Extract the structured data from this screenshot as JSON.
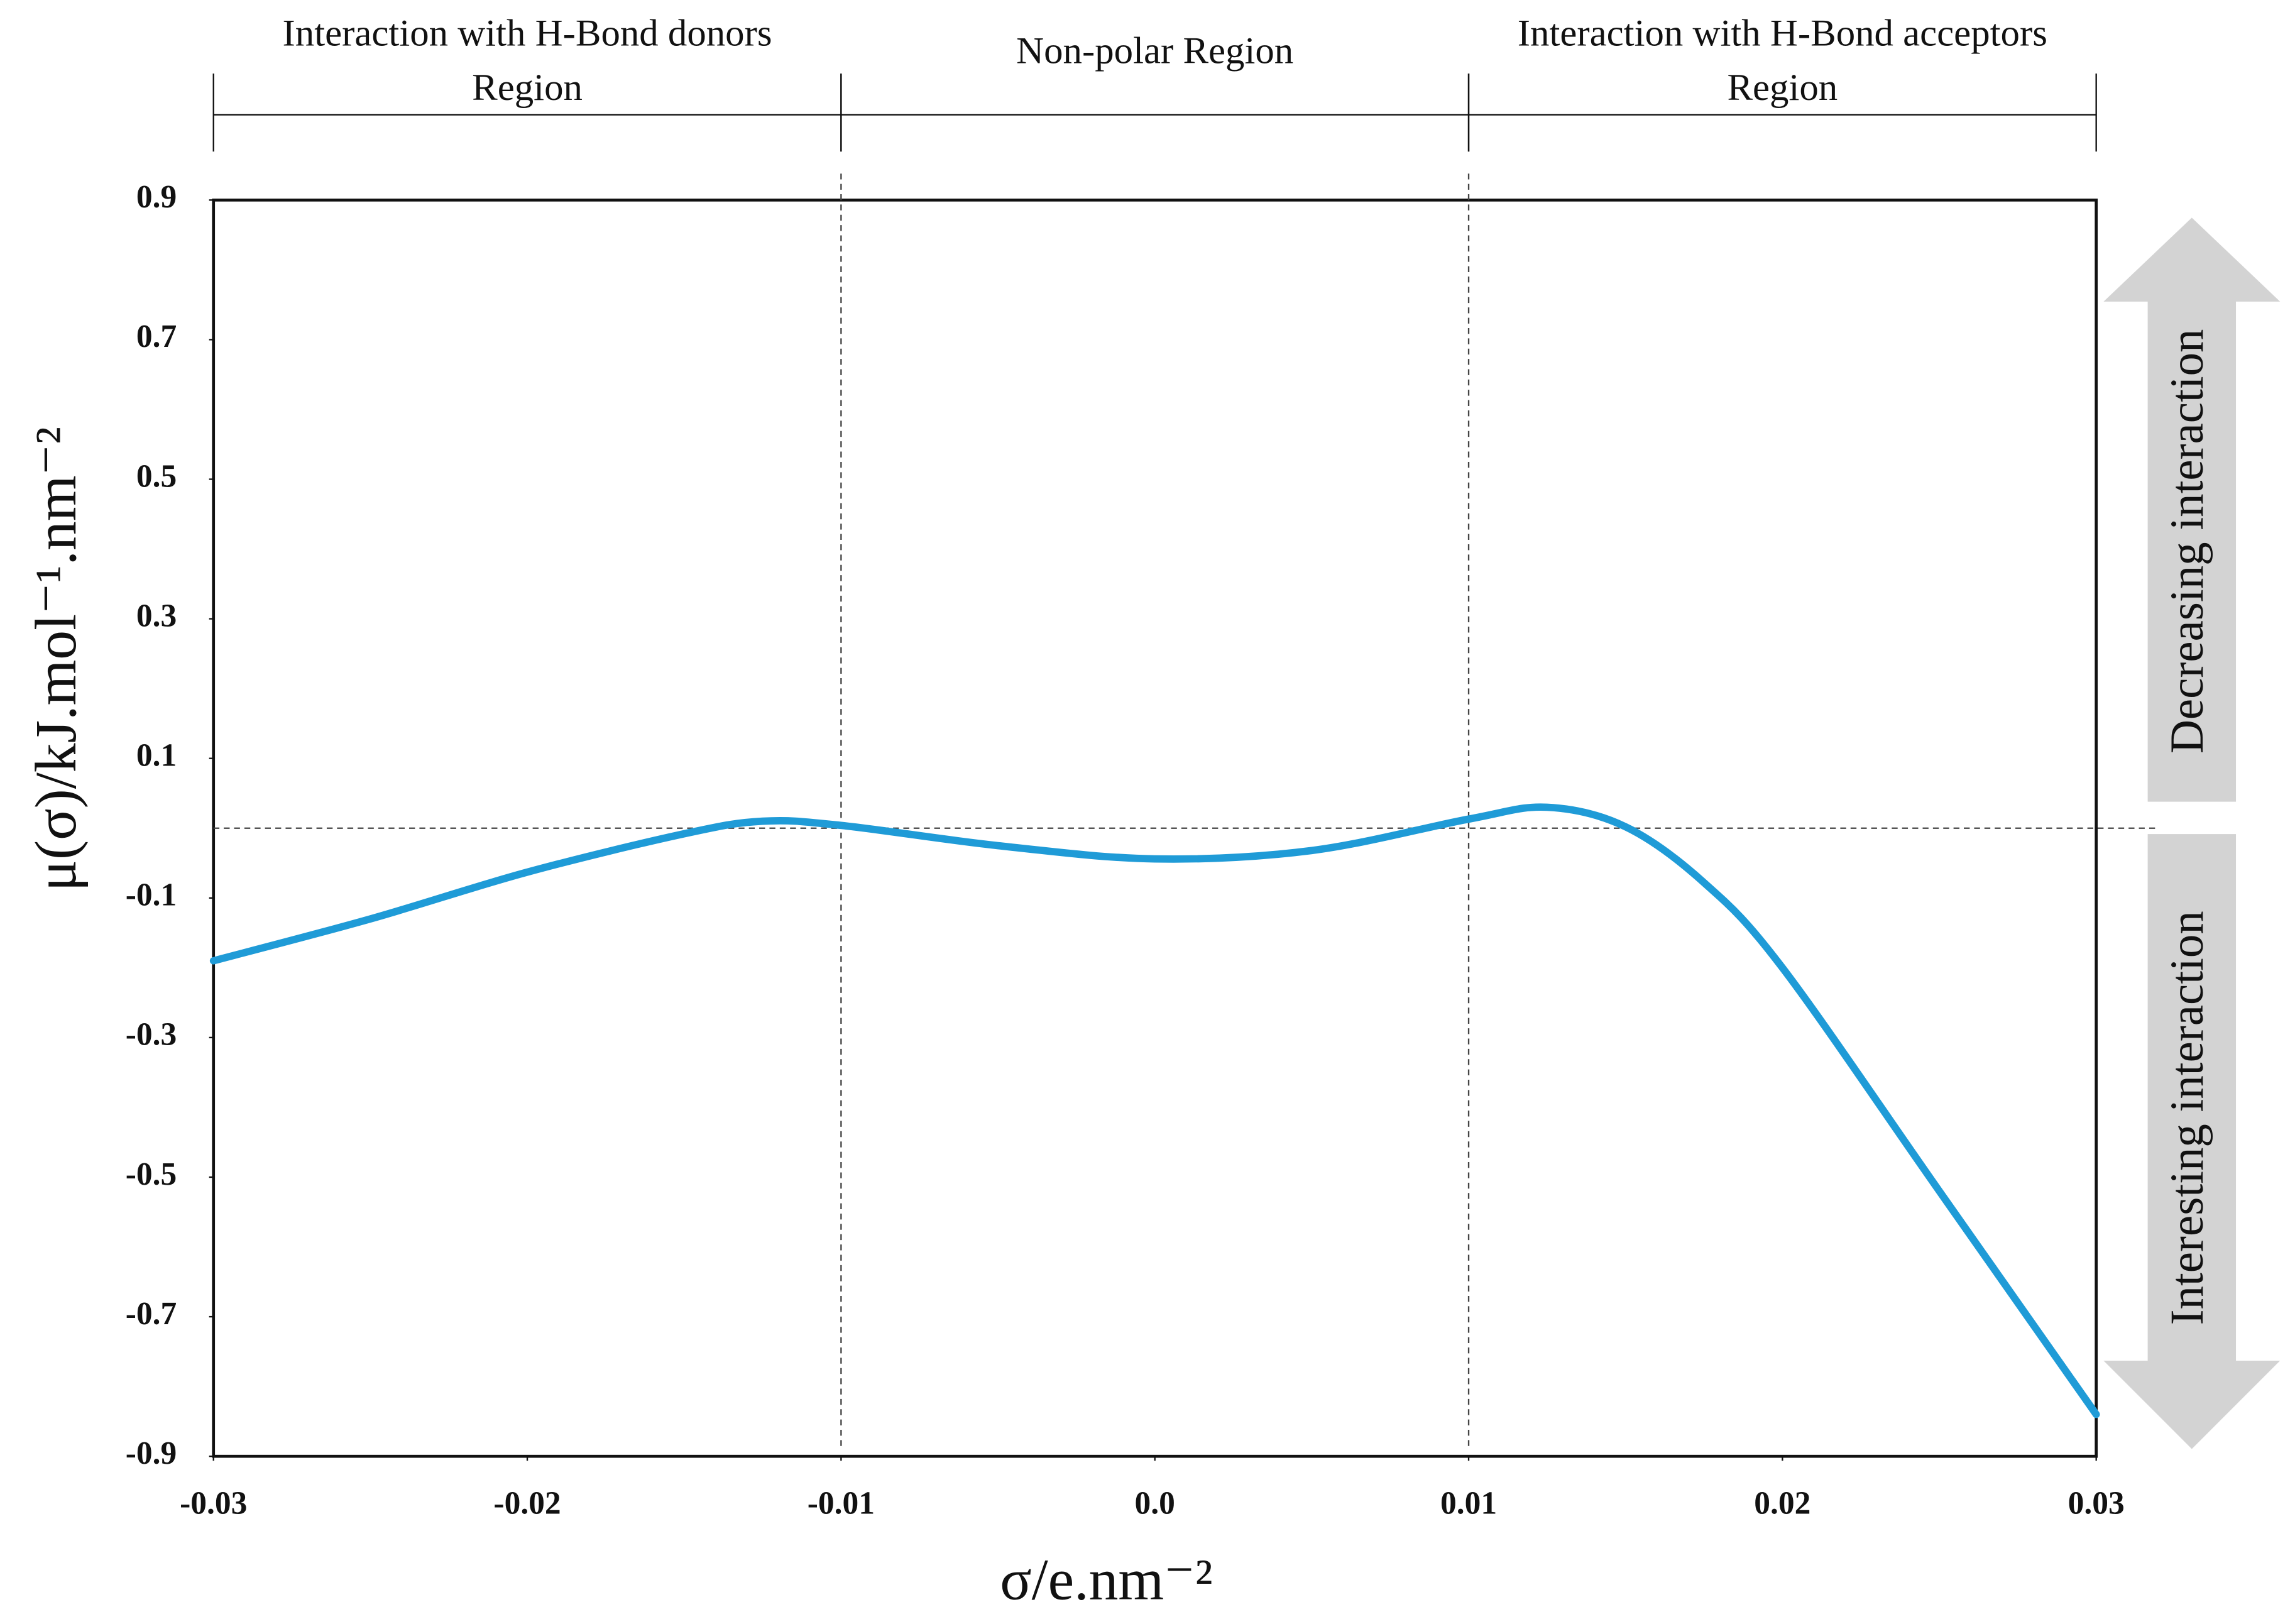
{
  "chart_data": {
    "type": "line",
    "xlabel": "σ/e.nm⁻²",
    "ylabel": "μ(σ)/kJ.mol⁻¹.nm⁻²",
    "x": [
      -0.03,
      -0.025,
      -0.02,
      -0.015,
      -0.0125,
      -0.01,
      -0.005,
      0,
      0.005,
      0.01,
      0.0125,
      0.015,
      0.0175,
      0.02,
      0.025,
      0.03
    ],
    "series": [
      {
        "color": "#1f9bd7",
        "values": [
          -0.19,
          -0.13,
          -0.063,
          -0.008,
          0.01,
          0.004,
          -0.025,
          -0.044,
          -0.032,
          0.013,
          0.03,
          0.002,
          -0.078,
          -0.2,
          -0.52,
          -0.84
        ]
      }
    ],
    "xlim": [
      -0.03,
      0.03
    ],
    "ylim": [
      -0.9,
      0.9
    ],
    "xticks": [
      -0.03,
      -0.02,
      -0.01,
      {
        "value": 0,
        "label": "0.0"
      },
      0.01,
      0.02,
      0.03
    ],
    "yticks": [
      0.9,
      0.7,
      0.5,
      0.3,
      0.1,
      -0.1,
      -0.3,
      -0.5,
      -0.7,
      -0.9
    ],
    "hline": 0,
    "regions": [
      {
        "label": [
          "Interaction with H-Bond donors",
          "Region"
        ],
        "x": [
          -0.03,
          -0.01
        ]
      },
      {
        "label": [
          "Non-polar Region"
        ],
        "x": [
          -0.01,
          0.01
        ]
      },
      {
        "label": [
          "Interaction with H-Bond acceptors",
          "Region"
        ],
        "x": [
          0.01,
          0.03
        ]
      }
    ],
    "arrows": [
      "Decreasing interaction",
      "Interesting interaction"
    ]
  }
}
